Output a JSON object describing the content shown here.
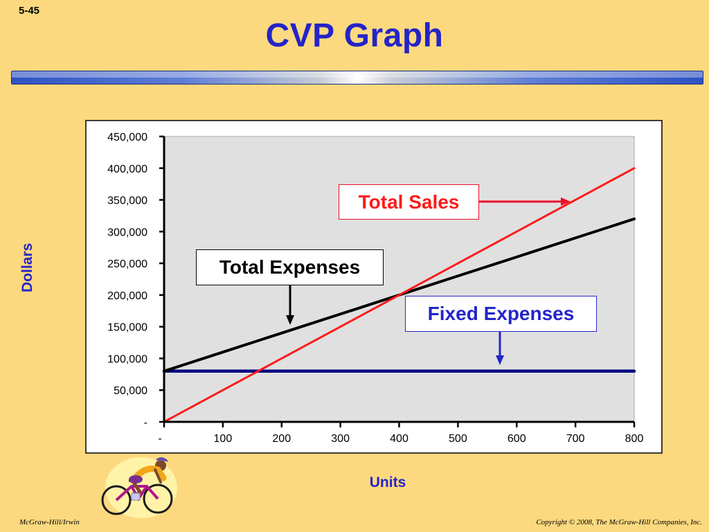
{
  "slide": {
    "number": "5-45",
    "title": "CVP Graph",
    "footer_left": "McGraw-Hill/Irwin",
    "footer_right": "Copyright © 2008, The McGraw-Hill Companies, Inc.",
    "illustration": "cyclist-icon"
  },
  "chart_data": {
    "type": "line",
    "title": "",
    "xlabel": "Units",
    "ylabel": "Dollars",
    "xlim": [
      0,
      800
    ],
    "ylim": [
      0,
      450000
    ],
    "x_ticks": [
      0,
      100,
      200,
      300,
      400,
      500,
      600,
      700,
      800
    ],
    "x_tick_labels": [
      "-",
      "100",
      "200",
      "300",
      "400",
      "500",
      "600",
      "700",
      "800"
    ],
    "y_ticks": [
      0,
      50000,
      100000,
      150000,
      200000,
      250000,
      300000,
      350000,
      400000,
      450000
    ],
    "y_tick_labels": [
      "-",
      "50,000",
      "100,000",
      "150,000",
      "200,000",
      "250,000",
      "300,000",
      "350,000",
      "400,000",
      "450,000"
    ],
    "grid": false,
    "plot_background": "#e0e0e0",
    "series": [
      {
        "name": "Total Sales",
        "color": "#ff1a1a",
        "x": [
          0,
          100,
          200,
          300,
          400,
          500,
          600,
          700,
          800
        ],
        "values": [
          0,
          50000,
          100000,
          150000,
          200000,
          250000,
          300000,
          350000,
          400000
        ]
      },
      {
        "name": "Total Expenses",
        "color": "#000000",
        "x": [
          0,
          100,
          200,
          300,
          400,
          500,
          600,
          700,
          800
        ],
        "values": [
          80000,
          110000,
          140000,
          170000,
          200000,
          230000,
          260000,
          290000,
          320000
        ]
      },
      {
        "name": "Fixed Expenses",
        "color": "#000080",
        "x": [
          0,
          100,
          200,
          300,
          400,
          500,
          600,
          700,
          800
        ],
        "values": [
          80000,
          80000,
          80000,
          80000,
          80000,
          80000,
          80000,
          80000,
          80000
        ]
      }
    ],
    "annotations": [
      {
        "label": "Total Sales",
        "color": "#ff1a1a",
        "arrow_color": "#e8102a"
      },
      {
        "label": "Total Expenses",
        "color": "#000000",
        "arrow_color": "#000000"
      },
      {
        "label": "Fixed Expenses",
        "color": "#2424c8",
        "arrow_color": "#2424c8"
      }
    ]
  }
}
